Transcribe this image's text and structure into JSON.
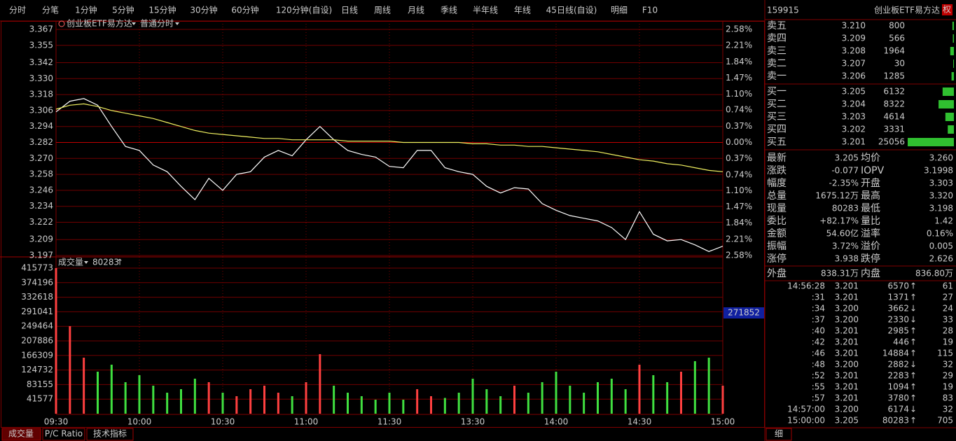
{
  "tabs": [
    "分时",
    "分笔",
    "1分钟",
    "5分钟",
    "15分钟",
    "30分钟",
    "60分钟",
    "120分钟(自设)",
    "日线",
    "周线",
    "月线",
    "季线",
    "半年线",
    "年线",
    "45日线(自设)",
    "明细",
    "F10"
  ],
  "code": "159915",
  "name": "创业板ETF易方达",
  "badge": "权",
  "price_chart": {
    "type": "line",
    "legend": [
      "创业板ETF易方达",
      "普通分时"
    ],
    "x": [
      0,
      5,
      10,
      15,
      20,
      25,
      30,
      35,
      40,
      45,
      50,
      55,
      60,
      65,
      70,
      75,
      80,
      85,
      90,
      95,
      100,
      105,
      110,
      115,
      120,
      125,
      130,
      135,
      140,
      145,
      150,
      155,
      160,
      165,
      170,
      175,
      180,
      185,
      190,
      195,
      200,
      205,
      210,
      215,
      220,
      225,
      230,
      235,
      240
    ],
    "series": [
      {
        "color": "#ffffff",
        "values": [
          3.305,
          3.313,
          3.315,
          3.31,
          3.294,
          3.279,
          3.276,
          3.265,
          3.26,
          3.249,
          3.239,
          3.255,
          3.246,
          3.258,
          3.26,
          3.271,
          3.276,
          3.272,
          3.284,
          3.294,
          3.284,
          3.276,
          3.273,
          3.271,
          3.264,
          3.263,
          3.276,
          3.276,
          3.263,
          3.26,
          3.258,
          3.249,
          3.244,
          3.248,
          3.247,
          3.236,
          3.231,
          3.227,
          3.225,
          3.223,
          3.218,
          3.209,
          3.23,
          3.213,
          3.208,
          3.209,
          3.205,
          3.2,
          3.204
        ]
      },
      {
        "color": "#f0f060",
        "values": [
          3.307,
          3.31,
          3.311,
          3.309,
          3.306,
          3.304,
          3.302,
          3.3,
          3.297,
          3.294,
          3.291,
          3.289,
          3.288,
          3.287,
          3.286,
          3.285,
          3.285,
          3.284,
          3.284,
          3.284,
          3.284,
          3.283,
          3.283,
          3.283,
          3.283,
          3.282,
          3.282,
          3.282,
          3.282,
          3.282,
          3.281,
          3.281,
          3.28,
          3.28,
          3.279,
          3.279,
          3.278,
          3.277,
          3.276,
          3.275,
          3.273,
          3.271,
          3.269,
          3.268,
          3.266,
          3.265,
          3.263,
          3.261,
          3.26
        ]
      }
    ],
    "xlim": [
      0,
      240
    ],
    "xticks": [
      {
        "value": 0,
        "label": "09:30"
      },
      {
        "value": 30,
        "label": "10:00"
      },
      {
        "value": 60,
        "label": "10:30"
      },
      {
        "value": 90,
        "label": "11:00"
      },
      {
        "value": 120,
        "label": "11:30"
      },
      {
        "value": 150,
        "label": "13:30"
      },
      {
        "value": 180,
        "label": "14:00"
      },
      {
        "value": 210,
        "label": "14:30"
      },
      {
        "value": 240,
        "label": "15:00"
      }
    ],
    "ylim": [
      3.197,
      3.367
    ],
    "yticks": [
      3.367,
      3.355,
      3.342,
      {
        "value": 3.33,
        "label": "3.330"
      },
      3.318,
      3.306,
      3.294,
      3.282,
      {
        "value": 3.27,
        "label": "3.270"
      },
      3.258,
      3.246,
      3.234,
      3.222,
      3.209,
      3.197
    ],
    "y2lim": [
      -2.58,
      2.58
    ],
    "y2ticks": [
      {
        "value": 2.58,
        "label": "2.58%"
      },
      {
        "value": 2.21,
        "label": "2.21%"
      },
      {
        "value": 1.84,
        "label": "1.84%"
      },
      {
        "value": 1.47,
        "label": "1.47%"
      },
      {
        "value": 1.1,
        "label": "1.10%"
      },
      {
        "value": 0.74,
        "label": "0.74%"
      },
      {
        "value": 0.37,
        "label": "0.37%"
      },
      {
        "value": 0,
        "label": "0.00%"
      },
      {
        "value": -0.37,
        "label": "0.37%"
      },
      {
        "value": -0.74,
        "label": "0.74%"
      },
      {
        "value": -1.1,
        "label": "1.10%"
      },
      {
        "value": -1.47,
        "label": "1.47%"
      },
      {
        "value": -1.84,
        "label": "1.84%"
      },
      {
        "value": -2.21,
        "label": "2.21%"
      },
      {
        "value": -2.58,
        "label": "2.58%"
      }
    ],
    "grid": true
  },
  "volume_chart": {
    "type": "bar",
    "title": "成交量",
    "current": 80283,
    "arrow": "↑",
    "cursor_label": 271852,
    "up_color": "#ff4040",
    "down_color": "#40e040",
    "values": [
      415773,
      250000,
      160000,
      120000,
      140000,
      90000,
      110000,
      80000,
      60000,
      70000,
      100000,
      90000,
      60000,
      50000,
      70000,
      80000,
      60000,
      50000,
      90000,
      170000,
      80000,
      60000,
      50000,
      40000,
      60000,
      40000,
      70000,
      50000,
      45000,
      60000,
      100000,
      70000,
      50000,
      80000,
      60000,
      90000,
      120000,
      80000,
      60000,
      90000,
      100000,
      70000,
      140000,
      110000,
      90000,
      120000,
      150000,
      160000,
      80000
    ],
    "ylim": [
      0,
      415773
    ],
    "yticks": [
      415773,
      374196,
      332618,
      291041,
      249464,
      207886,
      166309,
      124732,
      83155,
      41577
    ],
    "grid": true
  },
  "order_book": {
    "asks": [
      {
        "label": "卖五",
        "price": "3.210",
        "volume": 800
      },
      {
        "label": "卖四",
        "price": "3.209",
        "volume": 566
      },
      {
        "label": "卖三",
        "price": "3.208",
        "volume": 1964
      },
      {
        "label": "卖二",
        "price": "3.207",
        "volume": 30
      },
      {
        "label": "卖一",
        "price": "3.206",
        "volume": 1285
      }
    ],
    "bids": [
      {
        "label": "买一",
        "price": "3.205",
        "volume": 6132
      },
      {
        "label": "买二",
        "price": "3.204",
        "volume": 8322
      },
      {
        "label": "买三",
        "price": "3.203",
        "volume": 4614
      },
      {
        "label": "买四",
        "price": "3.202",
        "volume": 3331
      },
      {
        "label": "买五",
        "price": "3.201",
        "volume": 25056
      }
    ]
  },
  "quote": {
    "rows": [
      [
        {
          "label": "最新",
          "value": "3.205",
          "color": "#40e040"
        },
        {
          "label": "均价",
          "value": "3.260",
          "color": "#40e040"
        }
      ],
      [
        {
          "label": "涨跌",
          "value": "-0.077",
          "color": "#40e040"
        },
        {
          "label": "IOPV",
          "value": "3.1998",
          "color": "#ffffff"
        }
      ],
      [
        {
          "label": "幅度",
          "value": "-2.35%",
          "color": "#40e040"
        },
        {
          "label": "开盘",
          "value": "3.303",
          "color": "#ff4040"
        }
      ],
      [
        {
          "label": "总量",
          "value": "1675.12万",
          "color": "#ffffff"
        },
        {
          "label": "最高",
          "value": "3.320",
          "color": "#ff4040"
        }
      ],
      [
        {
          "label": "现量",
          "value": "80283",
          "color": "#ffffff"
        },
        {
          "label": "最低",
          "value": "3.198",
          "color": "#40e040"
        }
      ],
      [
        {
          "label": "委比",
          "value": "+82.17%",
          "color": "#ff4040"
        },
        {
          "label": "量比",
          "value": "1.42",
          "color": "#ffff80"
        }
      ],
      [
        {
          "label": "金额",
          "value": "54.60亿",
          "color": "#ffffff"
        },
        {
          "label": "溢率",
          "value": "0.16%",
          "color": "#ff4040"
        }
      ],
      [
        {
          "label": "振幅",
          "value": "3.72%",
          "color": "#ffffff"
        },
        {
          "label": "溢价",
          "value": "0.005",
          "color": "#ff4040"
        }
      ],
      [
        {
          "label": "涨停",
          "value": "3.938",
          "color": "#ff4040"
        },
        {
          "label": "跌停",
          "value": "2.626",
          "color": "#40e040"
        }
      ]
    ],
    "outer": {
      "label": "外盘",
      "value": "838.31万",
      "color": "#ff4040"
    },
    "inner": {
      "label": "内盘",
      "value": "836.80万",
      "color": "#40e040"
    }
  },
  "trades": [
    {
      "time": "14:56:28",
      "price": "3.201",
      "volume": "6570",
      "arrow": "↑",
      "color": "#ff4040",
      "count": "61"
    },
    {
      "time": ":31",
      "price": "3.201",
      "volume": "1371",
      "arrow": "↑",
      "color": "#ff4040",
      "count": "27"
    },
    {
      "time": ":34",
      "price": "3.200",
      "volume": "3662",
      "arrow": "↓",
      "color": "#40e040",
      "count": "24"
    },
    {
      "time": ":37",
      "price": "3.200",
      "volume": "2330",
      "arrow": "↓",
      "color": "#40e040",
      "count": "33"
    },
    {
      "time": ":40",
      "price": "3.201",
      "volume": "2985",
      "arrow": "↑",
      "color": "#ff4040",
      "count": "28"
    },
    {
      "time": ":42",
      "price": "3.201",
      "volume": "446",
      "arrow": "↑",
      "color": "#ff4040",
      "count": "19"
    },
    {
      "time": ":46",
      "price": "3.201",
      "volume": "14884",
      "arrow": "↑",
      "color": "#ff4040",
      "count": "115"
    },
    {
      "time": ":48",
      "price": "3.200",
      "volume": "2882",
      "arrow": "↓",
      "color": "#40e040",
      "count": "32"
    },
    {
      "time": ":52",
      "price": "3.201",
      "volume": "2283",
      "arrow": "↑",
      "color": "#ff4040",
      "count": "29"
    },
    {
      "time": ":55",
      "price": "3.201",
      "volume": "1094",
      "arrow": "↑",
      "color": "#ff4040",
      "count": "19"
    },
    {
      "time": ":57",
      "price": "3.201",
      "volume": "3780",
      "arrow": "↑",
      "color": "#ff4040",
      "count": "83"
    },
    {
      "time": "14:57:00",
      "price": "3.200",
      "volume": "6174",
      "arrow": "↓",
      "color": "#40e040",
      "count": "32"
    },
    {
      "time": "15:00:00",
      "price": "3.205",
      "volume": "80283",
      "arrow": "↑",
      "color": "#ff4040",
      "count": "705"
    }
  ],
  "bottom_tabs": [
    "成交量",
    "P/C Ratio",
    "技术指标"
  ],
  "side_tab": "细"
}
